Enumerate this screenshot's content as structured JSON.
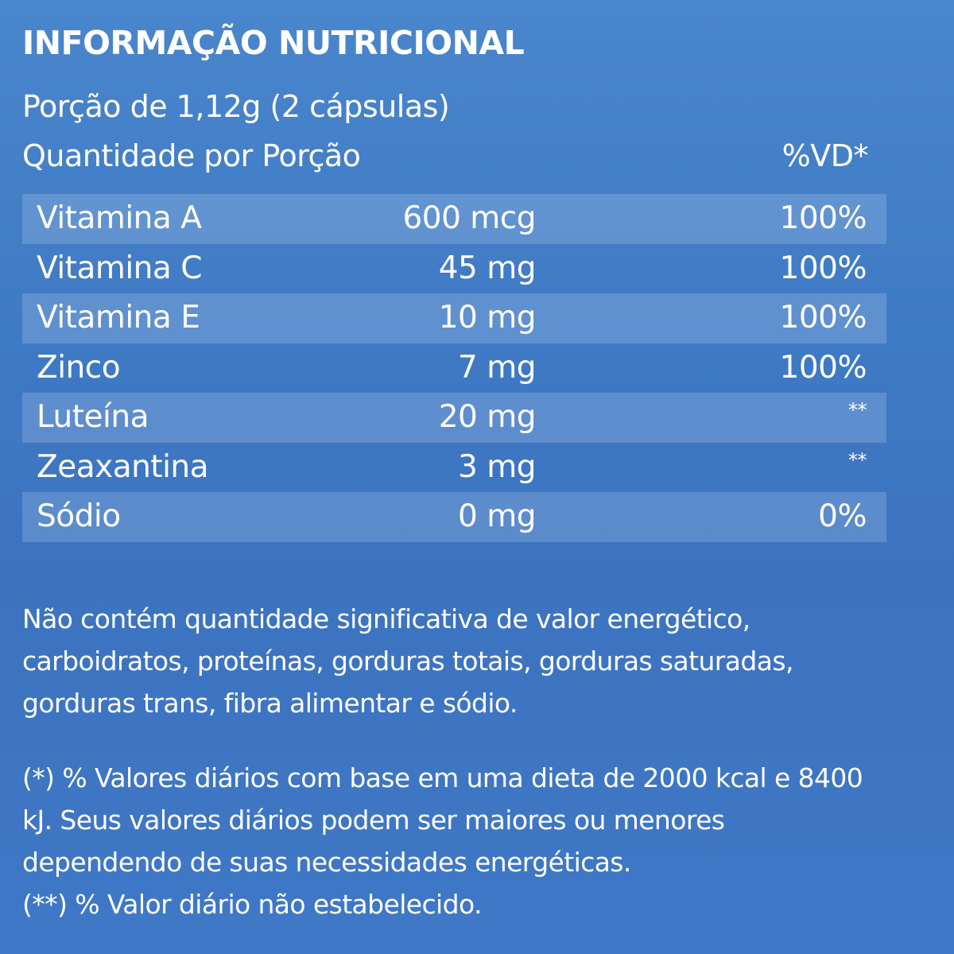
{
  "title": "INFORMAÇÃO NUTRICIONAL",
  "serving": "Porção de 1,12g (2 cápsulas)",
  "header": {
    "quantity_label": "Quantidade por Porção",
    "dv_label": "%VD*"
  },
  "rows": [
    {
      "name": "Vitamina A",
      "amount": "600 mcg",
      "dv": "100%"
    },
    {
      "name": "Vitamina C",
      "amount": "45 mg",
      "dv": "100%"
    },
    {
      "name": "Vitamina E",
      "amount": "10 mg",
      "dv": "100%"
    },
    {
      "name": "Zinco",
      "amount": "7 mg",
      "dv": "100%"
    },
    {
      "name": "Luteína",
      "amount": "20 mg",
      "dv": "**"
    },
    {
      "name": "Zeaxantina",
      "amount": "3 mg",
      "dv": "**"
    },
    {
      "name": "Sódio",
      "amount": "0 mg",
      "dv": "0%"
    }
  ],
  "note_lines": [
    "Não contém quantidade significativa de valor energético,",
    "carboidratos, proteínas, gorduras totais, gorduras saturadas,",
    "gorduras trans, fibra alimentar e sódio."
  ],
  "footnote_lines": [
    "(*) % Valores diários com base em uma dieta de 2000 kcal e 8400",
    "kJ. Seus valores diários podem ser maiores ou menores",
    "dependendo de suas necessidades energéticas.",
    "(**) % Valor diário não estabelecido."
  ],
  "colors": {
    "background": "#3f7ac4",
    "text": "#ffffff",
    "row_shade": "#d2e1f5"
  }
}
